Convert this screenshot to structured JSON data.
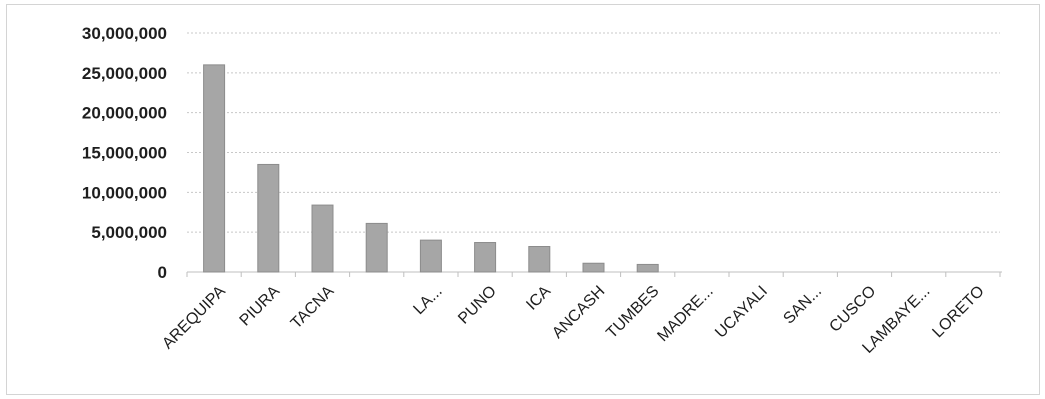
{
  "chart_data": {
    "type": "bar",
    "categories": [
      "AREQUIPA",
      "PIURA",
      "TACNA",
      "",
      "LA...",
      "PUNO",
      "ICA",
      "ANCASH",
      "TUMBES",
      "MADRE...",
      "UCAYALI",
      "SAN...",
      "CUSCO",
      "LAMBAYE...",
      "LORETO"
    ],
    "values": [
      26000000,
      13500000,
      8400000,
      6100000,
      4000000,
      3700000,
      3200000,
      1100000,
      950000,
      0,
      0,
      0,
      0,
      0,
      0
    ],
    "ylim": [
      0,
      30000000
    ],
    "yticks": [
      0,
      5000000,
      10000000,
      15000000,
      20000000,
      25000000,
      30000000
    ],
    "ytick_labels": [
      "0",
      "5,000,000",
      "10,000,000",
      "15,000,000",
      "20,000,000",
      "25,000,000",
      "30,000,000"
    ],
    "title": "",
    "xlabel": "",
    "ylabel": "",
    "grid": true,
    "legend": "none",
    "bar_color": "#a6a6a6",
    "bar_edge_color": "#8c8c8c"
  }
}
